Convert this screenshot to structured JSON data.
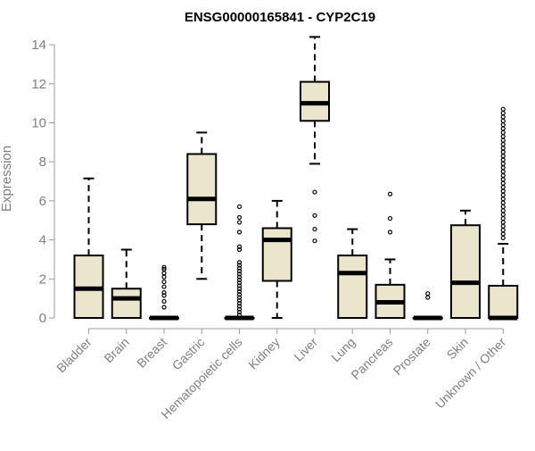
{
  "chart_data": {
    "type": "box",
    "title": "ENSG00000165841 - CYP2C19",
    "xlabel": "",
    "ylabel": "Expression",
    "ylim": [
      0,
      14.5
    ],
    "yticks": [
      0,
      2,
      4,
      6,
      8,
      10,
      12,
      14
    ],
    "grid": false,
    "legend": "none",
    "colors": {
      "box_fill": "#ece5cd",
      "stroke": "#000000",
      "text": "#7f7f7f"
    },
    "categories": [
      "Bladder",
      "Brain",
      "Breast",
      "Gastric",
      "Hematopoietic cells",
      "Kidney",
      "Liver",
      "Lung",
      "Pancreas",
      "Prostate",
      "Skin",
      "Unknown / Other"
    ],
    "boxes": [
      {
        "min": 0,
        "q1": 0,
        "median": 1.5,
        "q3": 3.2,
        "max": 7.15,
        "outliers": []
      },
      {
        "min": 0,
        "q1": 0,
        "median": 1.0,
        "q3": 1.5,
        "max": 3.5,
        "outliers": []
      },
      {
        "min": 0,
        "q1": 0,
        "median": 0,
        "q3": 0,
        "max": 0,
        "outliers": [
          0.55,
          0.85,
          1.15,
          1.3,
          1.6,
          1.85,
          2.1,
          2.3,
          2.5,
          2.6
        ]
      },
      {
        "min": 2.0,
        "q1": 4.8,
        "median": 6.1,
        "q3": 8.4,
        "max": 9.5,
        "outliers": []
      },
      {
        "min": 0,
        "q1": 0,
        "median": 0,
        "q3": 0,
        "max": 0,
        "outliers": [
          0.15,
          0.3,
          0.45,
          0.6,
          0.75,
          0.9,
          1.05,
          1.2,
          1.35,
          1.5,
          1.65,
          1.8,
          1.95,
          2.1,
          2.25,
          2.4,
          2.55,
          2.7,
          2.85,
          3.5,
          3.65,
          4.4,
          4.9,
          5.15,
          5.7
        ]
      },
      {
        "min": 0,
        "q1": 1.9,
        "median": 4.0,
        "q3": 4.6,
        "max": 6.0,
        "outliers": []
      },
      {
        "min": 7.9,
        "q1": 10.1,
        "median": 11.0,
        "q3": 12.1,
        "max": 14.4,
        "outliers": [
          3.95,
          4.55,
          5.25,
          6.45
        ]
      },
      {
        "min": 0,
        "q1": 0,
        "median": 2.3,
        "q3": 3.2,
        "max": 4.55,
        "outliers": []
      },
      {
        "min": 0,
        "q1": 0,
        "median": 0.8,
        "q3": 1.7,
        "max": 3.0,
        "outliers": [
          4.4,
          5.1,
          6.35
        ]
      },
      {
        "min": 0,
        "q1": 0,
        "median": 0,
        "q3": 0,
        "max": 0,
        "outliers": [
          1.05,
          1.25
        ]
      },
      {
        "min": 0,
        "q1": 0,
        "median": 1.8,
        "q3": 4.75,
        "max": 5.5,
        "outliers": []
      },
      {
        "min": 0,
        "q1": 0,
        "median": 0,
        "q3": 1.65,
        "max": 3.8,
        "outliers": [
          4.1,
          4.3,
          4.5,
          4.7,
          4.9,
          5.1,
          5.3,
          5.5,
          5.7,
          5.9,
          6.1,
          6.3,
          6.5,
          6.7,
          6.9,
          7.1,
          7.3,
          7.5,
          7.7,
          7.9,
          8.1,
          8.3,
          8.5,
          8.7,
          8.9,
          9.1,
          9.3,
          9.5,
          9.7,
          9.9,
          10.1,
          10.3,
          10.5,
          10.7
        ]
      }
    ]
  }
}
